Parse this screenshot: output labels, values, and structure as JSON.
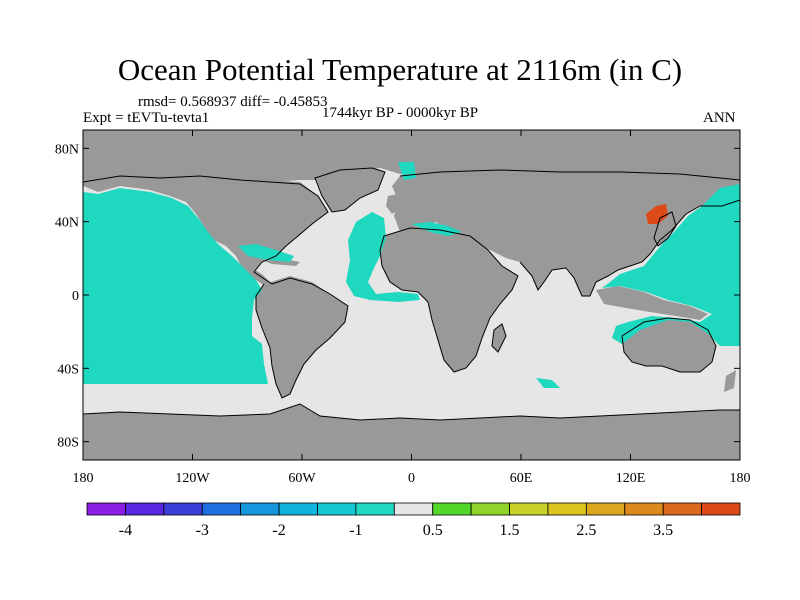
{
  "title": "Ocean Potential Temperature at 2116m (in C)",
  "stats": "rmsd= 0.568937 diff= -0.45853",
  "expt": "Expt = tEVTu-tevta1",
  "period": "1744kyr BP - 0000kyr BP",
  "season": "ANN",
  "map": {
    "lon_range": [
      -180,
      180
    ],
    "lat_range": [
      -90,
      90
    ],
    "land_color": "#999999",
    "ocean_neutral_color": "#e6e6e6",
    "x_ticks": [
      {
        "lon": -180,
        "label": "180"
      },
      {
        "lon": -120,
        "label": "120W"
      },
      {
        "lon": -60,
        "label": "60W"
      },
      {
        "lon": 0,
        "label": "0"
      },
      {
        "lon": 60,
        "label": "60E"
      },
      {
        "lon": 120,
        "label": "120E"
      },
      {
        "lon": 180,
        "label": "180"
      }
    ],
    "y_ticks": [
      {
        "lat": 80,
        "label": "80N"
      },
      {
        "lat": 40,
        "label": "40N"
      },
      {
        "lat": 0,
        "label": "0"
      },
      {
        "lat": -40,
        "label": "40S"
      },
      {
        "lat": -80,
        "label": "80S"
      }
    ]
  },
  "colorbar": {
    "colors": [
      "#8b1fe6",
      "#5a28e0",
      "#3a3fd9",
      "#1f6fe0",
      "#1596dd",
      "#12b4dd",
      "#16c8d4",
      "#1ed8c0",
      "#e6e6e6",
      "#52d62a",
      "#8fd42a",
      "#c8d22a",
      "#dcc41e",
      "#dca81e",
      "#dc8a1e",
      "#dc6a1e",
      "#dc4a1a"
    ],
    "labels": [
      {
        "after_box": 1,
        "text": "-4"
      },
      {
        "after_box": 3,
        "text": "-3"
      },
      {
        "after_box": 5,
        "text": "-2"
      },
      {
        "after_box": 7,
        "text": "-1"
      },
      {
        "after_box": 9,
        "text": "0.5"
      },
      {
        "after_box": 11,
        "text": "1.5"
      },
      {
        "after_box": 13,
        "text": "2.5"
      },
      {
        "after_box": 15,
        "text": "3.5"
      }
    ]
  }
}
